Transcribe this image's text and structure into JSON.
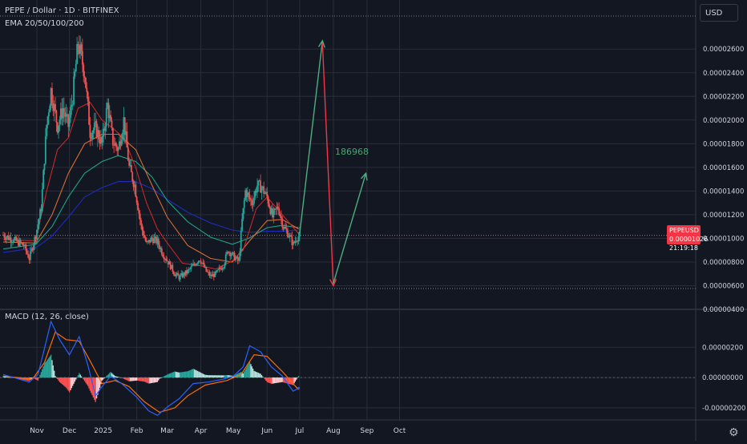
{
  "header": {
    "symbol_line": "PEPE / Dollar · 1D · BITFINEX",
    "indicator_line": "EMA 20/50/100/200",
    "macd_label": "MACD (12, 26, close)",
    "currency_button": "USD"
  },
  "price_tag": {
    "symbol": "PEPEUSD",
    "price": "0.00001026",
    "countdown": "21:19:18"
  },
  "annotation_text": "186968",
  "colors": {
    "background": "#131722",
    "grid": "#2a2e39",
    "up": "#26a69a",
    "down": "#ef5350",
    "ema20": "#c62828",
    "ema50": "#d66d36",
    "ema100": "#22a087",
    "ema200": "#1e2bbd",
    "macd_line": "#2962ff",
    "signal_line": "#ff6d00",
    "arrow_up": "#4caf7d",
    "arrow_down": "#f23645"
  },
  "icons": {
    "settings": "gear-icon"
  },
  "chart_data": [
    {
      "type": "candlestick",
      "title": "PEPE / Dollar · 1D · BITFINEX",
      "y_axis": {
        "ticks": [
          "0.00000400",
          "0.00000600",
          "0.00000800",
          "0.00001000",
          "0.00001200",
          "0.00001400",
          "0.00001600",
          "0.00001800",
          "0.00002000",
          "0.00002200",
          "0.00002400",
          "0.00002600"
        ],
        "range": [
          4e-06,
          2.92e-05
        ]
      },
      "x_axis": {
        "ticks": [
          "Nov",
          "Dec",
          "2025",
          "Feb",
          "Mar",
          "Apr",
          "May",
          "Jun",
          "Jul",
          "Aug",
          "Sep",
          "Oct"
        ]
      },
      "last_price": 1.026e-05,
      "price_path": [
        [
          "2024-10-01",
          1.03e-05
        ],
        [
          "2024-10-10",
          9.9e-06
        ],
        [
          "2024-10-20",
          9.4e-06
        ],
        [
          "2024-10-25",
          8.3e-06
        ],
        [
          "2024-10-31",
          1.03e-05
        ],
        [
          "2024-11-05",
          1.26e-05
        ],
        [
          "2024-11-10",
          1.96e-05
        ],
        [
          "2024-11-14",
          2.25e-05
        ],
        [
          "2024-11-20",
          1.95e-05
        ],
        [
          "2024-11-25",
          2.1e-05
        ],
        [
          "2024-11-30",
          1.95e-05
        ],
        [
          "2024-12-04",
          2.2e-05
        ],
        [
          "2024-12-09",
          2.65e-05
        ],
        [
          "2024-12-15",
          2.4e-05
        ],
        [
          "2024-12-20",
          1.9e-05
        ],
        [
          "2024-12-25",
          1.93e-05
        ],
        [
          "2024-12-31",
          1.8e-05
        ],
        [
          "2025-01-05",
          2.13e-05
        ],
        [
          "2025-01-10",
          1.82e-05
        ],
        [
          "2025-01-15",
          1.75e-05
        ],
        [
          "2025-01-20",
          2e-05
        ],
        [
          "2025-01-25",
          1.6e-05
        ],
        [
          "2025-01-30",
          1.45e-05
        ],
        [
          "2025-02-05",
          1.1e-05
        ],
        [
          "2025-02-10",
          9.5e-06
        ],
        [
          "2025-02-15",
          1e-05
        ],
        [
          "2025-02-20",
          9.7e-06
        ],
        [
          "2025-02-25",
          8.7e-06
        ],
        [
          "2025-03-02",
          8e-06
        ],
        [
          "2025-03-08",
          7e-06
        ],
        [
          "2025-03-12",
          6.7e-06
        ],
        [
          "2025-03-20",
          7.2e-06
        ],
        [
          "2025-03-26",
          7.8e-06
        ],
        [
          "2025-03-31",
          8.3e-06
        ],
        [
          "2025-04-06",
          7.2e-06
        ],
        [
          "2025-04-10",
          6.8e-06
        ],
        [
          "2025-04-15",
          7e-06
        ],
        [
          "2025-04-22",
          7.8e-06
        ],
        [
          "2025-04-26",
          9e-06
        ],
        [
          "2025-05-01",
          8.5e-06
        ],
        [
          "2025-05-06",
          8e-06
        ],
        [
          "2025-05-09",
          1.15e-05
        ],
        [
          "2025-05-12",
          1.4e-05
        ],
        [
          "2025-05-18",
          1.3e-05
        ],
        [
          "2025-05-23",
          1.45e-05
        ],
        [
          "2025-05-27",
          1.43e-05
        ],
        [
          "2025-06-01",
          1.35e-05
        ],
        [
          "2025-06-06",
          1.18e-05
        ],
        [
          "2025-06-11",
          1.27e-05
        ],
        [
          "2025-06-16",
          1.1e-05
        ],
        [
          "2025-06-21",
          1.03e-05
        ],
        [
          "2025-06-25",
          9.5e-06
        ],
        [
          "2025-06-28",
          1e-05
        ],
        [
          "2025-07-01",
          1.026e-05
        ]
      ],
      "ema20": [
        [
          "2024-10-01",
          9.9e-06
        ],
        [
          "2024-10-31",
          9.8e-06
        ],
        [
          "2024-11-10",
          1.4e-05
        ],
        [
          "2024-11-20",
          1.75e-05
        ],
        [
          "2024-11-30",
          1.85e-05
        ],
        [
          "2024-12-09",
          2.1e-05
        ],
        [
          "2024-12-20",
          2.15e-05
        ],
        [
          "2024-12-31",
          2e-05
        ],
        [
          "2025-01-10",
          1.93e-05
        ],
        [
          "2025-01-20",
          1.85e-05
        ],
        [
          "2025-01-31",
          1.6e-05
        ],
        [
          "2025-02-10",
          1.3e-05
        ],
        [
          "2025-02-20",
          1.08e-05
        ],
        [
          "2025-03-02",
          9.5e-06
        ],
        [
          "2025-03-15",
          7.9e-06
        ],
        [
          "2025-03-31",
          7.7e-06
        ],
        [
          "2025-04-15",
          7.4e-06
        ],
        [
          "2025-04-30",
          8.1e-06
        ],
        [
          "2025-05-10",
          9e-06
        ],
        [
          "2025-05-22",
          1.25e-05
        ],
        [
          "2025-06-01",
          1.35e-05
        ],
        [
          "2025-06-15",
          1.2e-05
        ],
        [
          "2025-06-30",
          1.04e-05
        ]
      ],
      "ema50": [
        [
          "2024-10-01",
          9.7e-06
        ],
        [
          "2024-10-31",
          9.6e-06
        ],
        [
          "2024-11-15",
          1.2e-05
        ],
        [
          "2024-11-30",
          1.55e-05
        ],
        [
          "2024-12-15",
          1.8e-05
        ],
        [
          "2024-12-31",
          1.88e-05
        ],
        [
          "2025-01-15",
          1.88e-05
        ],
        [
          "2025-01-31",
          1.75e-05
        ],
        [
          "2025-02-15",
          1.45e-05
        ],
        [
          "2025-03-01",
          1.18e-05
        ],
        [
          "2025-03-20",
          9.4e-06
        ],
        [
          "2025-04-10",
          8.3e-06
        ],
        [
          "2025-04-30",
          8e-06
        ],
        [
          "2025-05-15",
          9.7e-06
        ],
        [
          "2025-06-01",
          1.15e-05
        ],
        [
          "2025-06-15",
          1.16e-05
        ],
        [
          "2025-06-30",
          1.08e-05
        ]
      ],
      "ema100": [
        [
          "2024-10-01",
          9.1e-06
        ],
        [
          "2024-10-31",
          9.5e-06
        ],
        [
          "2024-11-15",
          1.1e-05
        ],
        [
          "2024-11-30",
          1.35e-05
        ],
        [
          "2024-12-15",
          1.55e-05
        ],
        [
          "2024-12-31",
          1.65e-05
        ],
        [
          "2025-01-15",
          1.7e-05
        ],
        [
          "2025-01-31",
          1.65e-05
        ],
        [
          "2025-02-15",
          1.52e-05
        ],
        [
          "2025-03-01",
          1.32e-05
        ],
        [
          "2025-03-20",
          1.14e-05
        ],
        [
          "2025-04-10",
          1.01e-05
        ],
        [
          "2025-04-30",
          9.5e-06
        ],
        [
          "2025-05-15",
          1e-05
        ],
        [
          "2025-06-01",
          1.09e-05
        ],
        [
          "2025-06-15",
          1.11e-05
        ],
        [
          "2025-06-30",
          1.09e-05
        ]
      ],
      "ema200": [
        [
          "2024-10-01",
          8.8e-06
        ],
        [
          "2024-10-31",
          9.2e-06
        ],
        [
          "2024-11-15",
          1.02e-05
        ],
        [
          "2024-11-30",
          1.18e-05
        ],
        [
          "2024-12-15",
          1.35e-05
        ],
        [
          "2024-12-31",
          1.43e-05
        ],
        [
          "2025-01-15",
          1.48e-05
        ],
        [
          "2025-01-31",
          1.48e-05
        ],
        [
          "2025-02-15",
          1.42e-05
        ],
        [
          "2025-03-01",
          1.33e-05
        ],
        [
          "2025-03-20",
          1.22e-05
        ],
        [
          "2025-04-10",
          1.13e-05
        ],
        [
          "2025-04-30",
          1.07e-05
        ],
        [
          "2025-05-15",
          1.05e-05
        ],
        [
          "2025-06-01",
          1.06e-05
        ],
        [
          "2025-06-15",
          1.06e-05
        ],
        [
          "2025-06-30",
          1.07e-05
        ]
      ],
      "projection_arrows": [
        {
          "color": "up",
          "points": [
            [
              "2025-07-01",
              1.04e-05
            ],
            [
              "2025-07-22",
              2.67e-05
            ]
          ]
        },
        {
          "color": "down",
          "points": [
            [
              "2025-07-22",
              2.65e-05
            ],
            [
              "2025-08-01",
              6e-06
            ]
          ]
        },
        {
          "color": "up",
          "points": [
            [
              "2025-08-01",
              6.2e-06
            ],
            [
              "2025-08-31",
              1.55e-05
            ]
          ]
        }
      ]
    },
    {
      "type": "macd",
      "title": "MACD (12, 26, close)",
      "y_axis": {
        "ticks": [
          "0.00000200",
          "0.00000000",
          "-0.00000200"
        ],
        "range": [
          -2.8e-06,
          4.5e-06
        ]
      },
      "macd_line": [
        [
          "2024-10-01",
          2e-07
        ],
        [
          "2024-10-25",
          -3e-07
        ],
        [
          "2024-11-02",
          2e-07
        ],
        [
          "2024-11-10",
          2.5e-06
        ],
        [
          "2024-11-14",
          3.7e-06
        ],
        [
          "2024-11-22",
          2.5e-06
        ],
        [
          "2024-12-01",
          1.5e-06
        ],
        [
          "2024-12-10",
          2.7e-06
        ],
        [
          "2024-12-18",
          8e-07
        ],
        [
          "2024-12-25",
          -1.2e-06
        ],
        [
          "2024-12-31",
          -6e-07
        ],
        [
          "2025-01-08",
          1e-07
        ],
        [
          "2025-01-18",
          -4e-07
        ],
        [
          "2025-02-01",
          -1.3e-06
        ],
        [
          "2025-02-12",
          -2.2e-06
        ],
        [
          "2025-02-20",
          -2.5e-06
        ],
        [
          "2025-03-02",
          -1.9e-06
        ],
        [
          "2025-03-12",
          -1.4e-06
        ],
        [
          "2025-03-25",
          -4e-07
        ],
        [
          "2025-04-08",
          -3e-07
        ],
        [
          "2025-04-22",
          -1e-07
        ],
        [
          "2025-05-01",
          1e-07
        ],
        [
          "2025-05-10",
          7e-07
        ],
        [
          "2025-05-16",
          2.1e-06
        ],
        [
          "2025-05-26",
          1.7e-06
        ],
        [
          "2025-06-05",
          7e-07
        ],
        [
          "2025-06-15",
          1e-07
        ],
        [
          "2025-06-25",
          -9e-07
        ],
        [
          "2025-06-30",
          -7e-07
        ]
      ],
      "signal_line": [
        [
          "2024-10-01",
          1e-07
        ],
        [
          "2024-10-28",
          -1e-07
        ],
        [
          "2024-11-08",
          1e-06
        ],
        [
          "2024-11-18",
          3e-06
        ],
        [
          "2024-11-28",
          2.5e-06
        ],
        [
          "2024-12-10",
          2.4e-06
        ],
        [
          "2024-12-20",
          1.1e-06
        ],
        [
          "2024-12-31",
          -4e-07
        ],
        [
          "2025-01-12",
          -2e-07
        ],
        [
          "2025-01-25",
          -6e-07
        ],
        [
          "2025-02-08",
          -1.6e-06
        ],
        [
          "2025-02-22",
          -2.3e-06
        ],
        [
          "2025-03-08",
          -2e-06
        ],
        [
          "2025-03-20",
          -1.2e-06
        ],
        [
          "2025-04-05",
          -5e-07
        ],
        [
          "2025-04-25",
          -2e-07
        ],
        [
          "2025-05-08",
          2e-07
        ],
        [
          "2025-05-20",
          1.5e-06
        ],
        [
          "2025-06-01",
          1.4e-06
        ],
        [
          "2025-06-15",
          4e-07
        ],
        [
          "2025-06-30",
          -8e-07
        ]
      ]
    }
  ]
}
